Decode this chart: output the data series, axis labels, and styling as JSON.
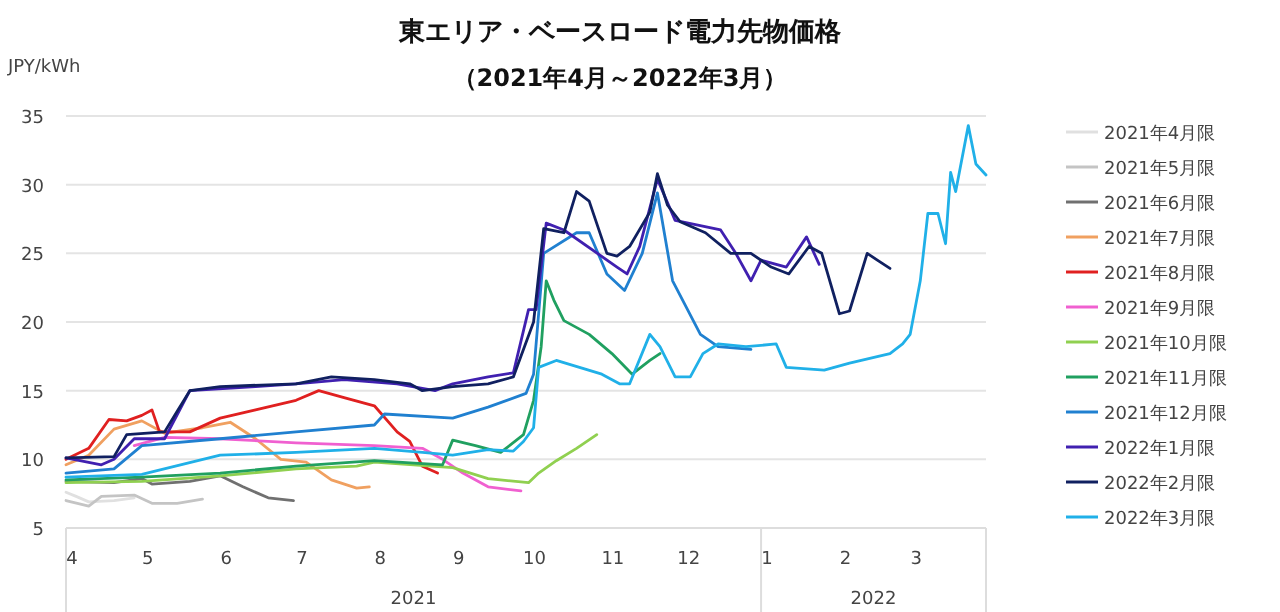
{
  "chart_data": {
    "type": "line",
    "title": "東エリア・ベースロード電力先物価格",
    "subtitle": "（2021年4月～2022年3月）",
    "ylabel": "JPY/kWh",
    "annotations": [
      "2021",
      "2022"
    ],
    "xlim": [
      "2021-04-01",
      "2022-03-31"
    ],
    "xticks": [
      {
        "value": "2021-04-01",
        "label": "4"
      },
      {
        "value": "2021-05-01",
        "label": "5"
      },
      {
        "value": "2021-06-01",
        "label": "6"
      },
      {
        "value": "2021-07-01",
        "label": "7"
      },
      {
        "value": "2021-08-01",
        "label": "8"
      },
      {
        "value": "2021-09-01",
        "label": "9"
      },
      {
        "value": "2021-10-01",
        "label": "10"
      },
      {
        "value": "2021-11-01",
        "label": "11"
      },
      {
        "value": "2021-12-01",
        "label": "12"
      },
      {
        "value": "2022-01-01",
        "label": "1"
      },
      {
        "value": "2022-02-01",
        "label": "2"
      },
      {
        "value": "2022-03-01",
        "label": "3"
      }
    ],
    "ylim": [
      5,
      35
    ],
    "yticks": [
      5,
      10,
      15,
      20,
      25,
      30,
      35
    ],
    "grid": "y",
    "legend": "right",
    "series": [
      {
        "name": "2021年4月限",
        "color": "#e0e0e0",
        "x": [
          "2021-04-01",
          "2021-04-05",
          "2021-04-10",
          "2021-04-20",
          "2021-04-28"
        ],
        "values": [
          7.6,
          7.3,
          6.9,
          7.0,
          7.2
        ]
      },
      {
        "name": "2021年5月限",
        "color": "#c4c4c4",
        "x": [
          "2021-04-01",
          "2021-04-10",
          "2021-04-15",
          "2021-04-28",
          "2021-05-05",
          "2021-05-15",
          "2021-05-25"
        ],
        "values": [
          7.0,
          6.6,
          7.3,
          7.4,
          6.8,
          6.8,
          7.1
        ]
      },
      {
        "name": "2021年6月限",
        "color": "#707070",
        "x": [
          "2021-04-01",
          "2021-04-20",
          "2021-05-01",
          "2021-05-05",
          "2021-05-20",
          "2021-06-01",
          "2021-06-10",
          "2021-06-20",
          "2021-06-30"
        ],
        "values": [
          8.4,
          8.3,
          8.6,
          8.2,
          8.4,
          8.8,
          8.0,
          7.2,
          7.0
        ]
      },
      {
        "name": "2021年7月限",
        "color": "#f0a060",
        "x": [
          "2021-04-01",
          "2021-04-10",
          "2021-04-20",
          "2021-05-01",
          "2021-05-10",
          "2021-05-25",
          "2021-06-05",
          "2021-06-15",
          "2021-06-25",
          "2021-07-05",
          "2021-07-15",
          "2021-07-25",
          "2021-07-30"
        ],
        "values": [
          9.6,
          10.3,
          12.2,
          12.8,
          11.9,
          12.3,
          12.7,
          11.5,
          10.0,
          9.8,
          8.5,
          7.9,
          8.0
        ]
      },
      {
        "name": "2021年8月限",
        "color": "#e02020",
        "x": [
          "2021-04-01",
          "2021-04-10",
          "2021-04-18",
          "2021-04-25",
          "2021-05-01",
          "2021-05-05",
          "2021-05-08",
          "2021-05-20",
          "2021-06-01",
          "2021-06-15",
          "2021-07-01",
          "2021-07-10",
          "2021-07-20",
          "2021-08-01",
          "2021-08-10",
          "2021-08-15",
          "2021-08-20",
          "2021-08-26"
        ],
        "values": [
          10.0,
          10.8,
          12.9,
          12.8,
          13.2,
          13.6,
          12.0,
          12.0,
          13.0,
          13.6,
          14.3,
          15.0,
          14.5,
          13.9,
          12.0,
          11.3,
          9.5,
          9.0
        ]
      },
      {
        "name": "2021年9月限",
        "color": "#f060d0",
        "x": [
          "2021-04-28",
          "2021-05-10",
          "2021-06-01",
          "2021-07-01",
          "2021-08-01",
          "2021-08-20",
          "2021-08-28",
          "2021-09-05",
          "2021-09-15",
          "2021-09-28"
        ],
        "values": [
          11.0,
          11.6,
          11.5,
          11.2,
          11.0,
          10.8,
          10.0,
          9.0,
          8.0,
          7.7
        ]
      },
      {
        "name": "2021年10月限",
        "color": "#90d050",
        "x": [
          "2021-04-01",
          "2021-05-01",
          "2021-06-01",
          "2021-07-01",
          "2021-07-25",
          "2021-08-01",
          "2021-09-01",
          "2021-09-15",
          "2021-10-01",
          "2021-10-05",
          "2021-10-12",
          "2021-10-20",
          "2021-10-28"
        ],
        "values": [
          8.3,
          8.4,
          8.8,
          9.3,
          9.5,
          9.8,
          9.4,
          8.6,
          8.3,
          9.0,
          9.9,
          10.8,
          11.8
        ]
      },
      {
        "name": "2021年11月限",
        "color": "#20a060",
        "x": [
          "2021-04-01",
          "2021-05-01",
          "2021-06-01",
          "2021-07-01",
          "2021-08-01",
          "2021-08-28",
          "2021-09-01",
          "2021-09-10",
          "2021-09-20",
          "2021-09-29",
          "2021-10-03",
          "2021-10-06",
          "2021-10-08",
          "2021-10-11",
          "2021-10-15",
          "2021-10-25",
          "2021-11-03",
          "2021-11-11",
          "2021-11-18",
          "2021-11-22"
        ],
        "values": [
          8.5,
          8.7,
          9.0,
          9.5,
          9.9,
          9.6,
          11.4,
          11.0,
          10.5,
          11.8,
          14.3,
          18.2,
          23.0,
          21.6,
          20.1,
          19.1,
          17.7,
          16.2,
          17.2,
          17.7
        ]
      },
      {
        "name": "2021年12月限",
        "color": "#2080d0",
        "x": [
          "2021-04-01",
          "2021-04-20",
          "2021-05-01",
          "2021-06-01",
          "2021-07-01",
          "2021-08-01",
          "2021-08-05",
          "2021-09-01",
          "2021-09-15",
          "2021-09-30",
          "2021-10-03",
          "2021-10-07",
          "2021-10-20",
          "2021-10-25",
          "2021-11-01",
          "2021-11-08",
          "2021-11-15",
          "2021-11-21",
          "2021-11-27",
          "2021-12-08",
          "2021-12-15",
          "2021-12-28"
        ],
        "values": [
          9.0,
          9.3,
          11.0,
          11.5,
          12.0,
          12.5,
          13.3,
          13.0,
          13.8,
          14.8,
          16.2,
          25.0,
          26.5,
          26.5,
          23.5,
          22.3,
          25.0,
          29.4,
          23.0,
          19.1,
          18.2,
          18.0
        ]
      },
      {
        "name": "2022年1月限",
        "color": "#4020b0",
        "x": [
          "2021-04-01",
          "2021-04-15",
          "2021-04-20",
          "2021-04-28",
          "2021-05-10",
          "2021-05-20",
          "2021-06-15",
          "2021-07-01",
          "2021-07-20",
          "2021-08-10",
          "2021-08-25",
          "2021-09-01",
          "2021-09-15",
          "2021-09-25",
          "2021-10-01",
          "2021-10-04",
          "2021-10-08",
          "2021-10-15",
          "2021-11-05",
          "2021-11-09",
          "2021-11-14",
          "2021-11-21",
          "2021-11-28",
          "2021-12-16",
          "2021-12-22",
          "2021-12-28",
          "2022-01-01",
          "2022-01-11",
          "2022-01-19",
          "2022-01-24"
        ],
        "values": [
          10.1,
          9.6,
          10.0,
          11.5,
          11.5,
          15.0,
          15.3,
          15.5,
          15.8,
          15.5,
          15.0,
          15.5,
          16.0,
          16.3,
          20.9,
          20.9,
          27.2,
          26.7,
          24.0,
          23.5,
          25.5,
          30.4,
          27.4,
          26.7,
          25.0,
          23.0,
          24.5,
          24.0,
          26.2,
          24.2
        ]
      },
      {
        "name": "2022年2月限",
        "color": "#102060",
        "x": [
          "2021-04-01",
          "2021-04-20",
          "2021-04-25",
          "2021-05-10",
          "2021-05-15",
          "2021-05-20",
          "2021-06-01",
          "2021-07-01",
          "2021-07-15",
          "2021-08-01",
          "2021-08-15",
          "2021-08-20",
          "2021-09-01",
          "2021-09-15",
          "2021-09-25",
          "2021-09-28",
          "2021-10-03",
          "2021-10-07",
          "2021-10-15",
          "2021-10-20",
          "2021-10-25",
          "2021-11-01",
          "2021-11-05",
          "2021-11-10",
          "2021-11-18",
          "2021-11-21",
          "2021-11-25",
          "2021-11-30",
          "2021-12-10",
          "2021-12-20",
          "2021-12-28",
          "2022-01-05",
          "2022-01-12",
          "2022-01-20",
          "2022-01-25",
          "2022-02-01",
          "2022-02-05",
          "2022-02-12",
          "2022-02-16",
          "2022-02-21"
        ],
        "values": [
          10.1,
          10.2,
          11.8,
          12.0,
          13.5,
          15.0,
          15.3,
          15.5,
          16.0,
          15.8,
          15.5,
          15.0,
          15.3,
          15.5,
          16.0,
          17.5,
          20.0,
          26.8,
          26.5,
          29.5,
          28.8,
          25.0,
          24.8,
          25.5,
          28.0,
          30.8,
          28.5,
          27.3,
          26.5,
          25.0,
          25.0,
          24.0,
          23.5,
          25.5,
          25.0,
          20.6,
          20.8,
          25.0,
          24.5,
          23.9
        ]
      },
      {
        "name": "2022年3月限",
        "color": "#20b0e8",
        "x": [
          "2021-04-01",
          "2021-05-01",
          "2021-06-01",
          "2021-07-01",
          "2021-08-01",
          "2021-08-20",
          "2021-09-01",
          "2021-09-15",
          "2021-09-25",
          "2021-09-29",
          "2021-10-03",
          "2021-10-05",
          "2021-10-12",
          "2021-10-30",
          "2021-11-06",
          "2021-11-10",
          "2021-11-18",
          "2021-11-22",
          "2021-11-28",
          "2021-12-04",
          "2021-12-09",
          "2021-12-15",
          "2021-12-26",
          "2022-01-07",
          "2022-01-11",
          "2022-01-26",
          "2022-02-05",
          "2022-02-21",
          "2022-02-26",
          "2022-03-01",
          "2022-03-05",
          "2022-03-08",
          "2022-03-12",
          "2022-03-15",
          "2022-03-17",
          "2022-03-19",
          "2022-03-24",
          "2022-03-27",
          "2022-03-31"
        ],
        "values": [
          8.7,
          8.9,
          10.3,
          10.5,
          10.8,
          10.5,
          10.3,
          10.7,
          10.6,
          11.3,
          12.3,
          16.7,
          17.2,
          16.2,
          15.5,
          15.5,
          19.1,
          18.2,
          16.0,
          16.0,
          17.7,
          18.4,
          18.2,
          18.4,
          16.7,
          16.5,
          17.0,
          17.7,
          18.4,
          19.1,
          23.0,
          27.9,
          27.9,
          25.7,
          30.9,
          29.5,
          34.3,
          31.5,
          30.7
        ]
      }
    ]
  }
}
